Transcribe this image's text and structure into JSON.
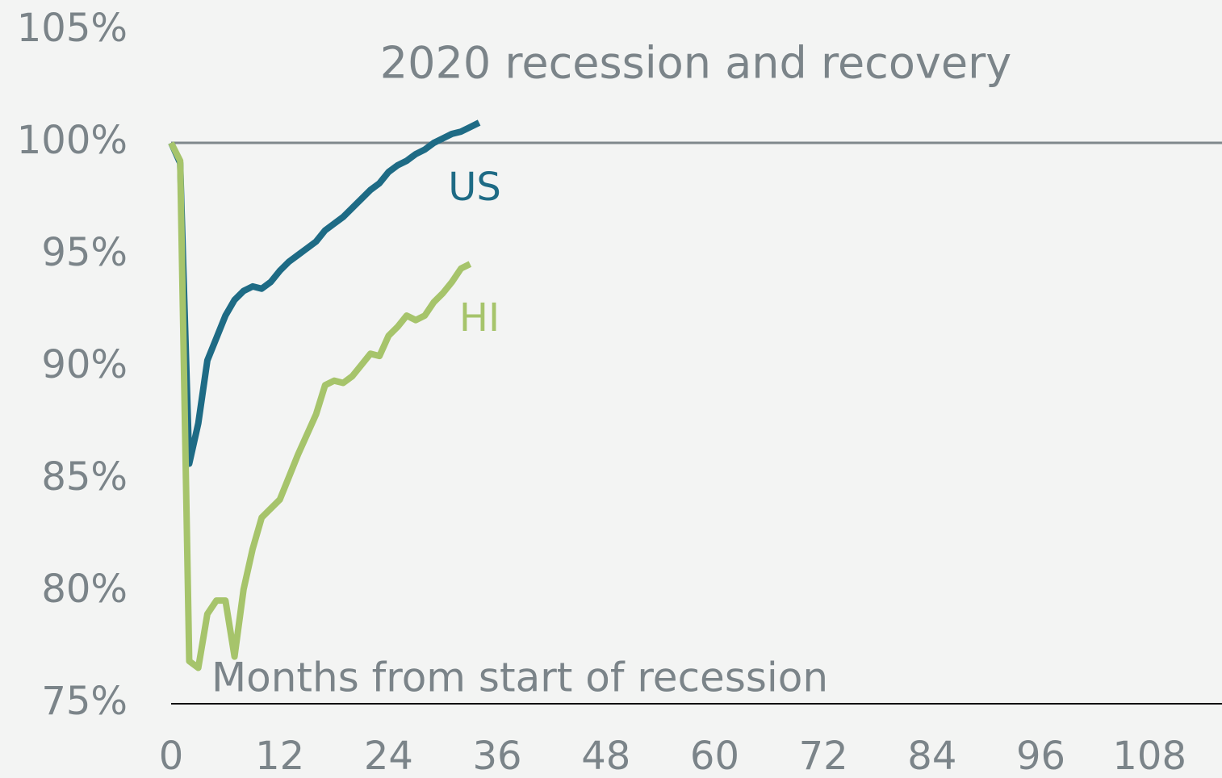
{
  "chart_data": {
    "type": "line",
    "title": "2020 recession and recovery",
    "x_label": "Months from start of recession",
    "x": [
      0,
      1,
      2,
      3,
      4,
      5,
      6,
      7,
      8,
      9,
      10,
      11,
      12,
      13,
      14,
      15,
      16,
      17,
      18,
      19,
      20,
      21,
      22,
      23,
      24,
      25,
      26,
      27,
      28,
      29,
      30,
      31,
      32,
      33,
      34
    ],
    "series": [
      {
        "name": "US",
        "color": "#1e6b85",
        "values": [
          100,
          99.1,
          85.7,
          87.5,
          90.3,
          91.3,
          92.3,
          93.0,
          93.4,
          93.6,
          93.5,
          93.8,
          94.3,
          94.7,
          95.0,
          95.3,
          95.6,
          96.1,
          96.4,
          96.7,
          97.1,
          97.5,
          97.9,
          98.2,
          98.7,
          99.0,
          99.2,
          99.5,
          99.7,
          100.0,
          100.2,
          100.4,
          100.5,
          100.7,
          100.9
        ]
      },
      {
        "name": "HI",
        "color": "#a6c46b",
        "values": [
          100,
          99.2,
          76.9,
          76.6,
          79.0,
          79.6,
          79.6,
          77.1,
          80.1,
          81.9,
          83.3,
          83.7,
          84.1,
          85.1,
          86.1,
          87.0,
          87.9,
          89.2,
          89.4,
          89.3,
          89.6,
          90.1,
          90.6,
          90.5,
          91.4,
          91.8,
          92.3,
          92.1,
          92.3,
          92.9,
          93.3,
          93.8,
          94.4,
          94.6,
          null
        ]
      }
    ],
    "reference_line": 100,
    "xlim": [
      0,
      116
    ],
    "xticks": [
      0,
      12,
      24,
      36,
      48,
      60,
      72,
      84,
      96,
      108
    ],
    "ylim": [
      75,
      105
    ],
    "yticks": [
      {
        "value": 75,
        "label": "75%"
      },
      {
        "value": 80,
        "label": "80%"
      },
      {
        "value": 85,
        "label": "85%"
      },
      {
        "value": 90,
        "label": "90%"
      },
      {
        "value": 95,
        "label": "95%"
      },
      {
        "value": 100,
        "label": "100%"
      },
      {
        "value": 105,
        "label": "105%"
      }
    ]
  }
}
